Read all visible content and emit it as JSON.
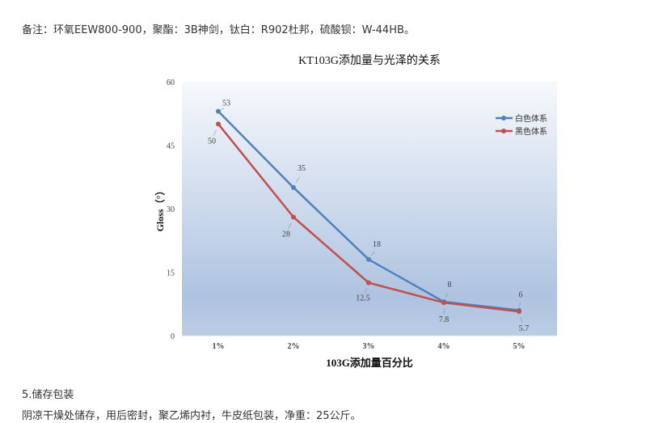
{
  "note": "备注：环氧EEW800-900，聚酯：3B神剑，钛白：R902杜邦，硫酸钡：W-44HB。",
  "section_title": "5.储存包装",
  "packaging": "阴凉干燥处储存，用后密封，聚乙烯内衬，牛皮纸包装，净重：25公斤。",
  "chart_data": {
    "type": "line",
    "title": "KT103G添加量与光泽的关系",
    "xlabel": "103G添加量百分比",
    "ylabel": "Gloss（°）",
    "categories": [
      "1%",
      "2%",
      "3%",
      "4%",
      "5%"
    ],
    "ylim": [
      0,
      60
    ],
    "yticks": [
      0,
      15,
      30,
      45,
      60
    ],
    "grid": false,
    "legend": "top-right",
    "series": [
      {
        "name": "白色体系",
        "color": "#4f81bd",
        "values": [
          53,
          35,
          18,
          8,
          6
        ],
        "labels": [
          "53",
          "35",
          "18",
          "8",
          "6"
        ]
      },
      {
        "name": "黑色体系",
        "color": "#c0504d",
        "values": [
          50,
          28,
          12.5,
          7.8,
          5.7
        ],
        "labels": [
          "50",
          "28",
          "12.5",
          "7.8",
          "5.7"
        ]
      }
    ]
  }
}
